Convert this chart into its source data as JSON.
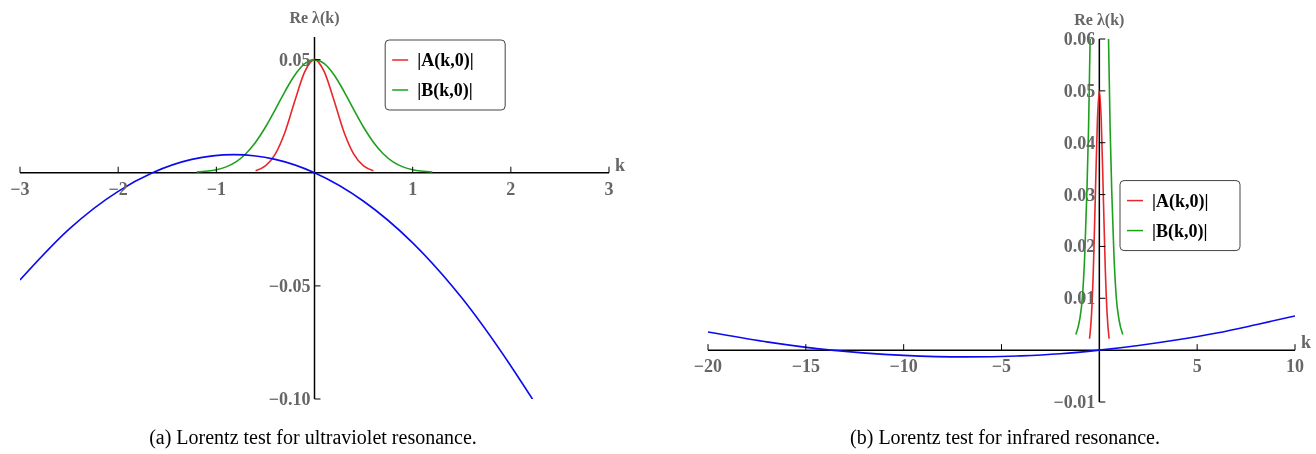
{
  "chart_data": [
    {
      "type": "line",
      "title": "(a) Lorentz test for ultraviolet resonance.",
      "xlabel": "k",
      "ylabel": "Re λ(k)",
      "xlim": [
        -3,
        3
      ],
      "ylim": [
        -0.1,
        0.06
      ],
      "xticks": [
        {
          "value": -3,
          "label": "−3"
        },
        {
          "value": -2,
          "label": "−2"
        },
        {
          "value": -1,
          "label": "−1"
        },
        1,
        2,
        3
      ],
      "yticks": [
        {
          "value": -0.1,
          "label": "−0.10"
        },
        {
          "value": -0.05,
          "label": "−0.05"
        },
        0.05
      ],
      "legend": "top right",
      "grid": false,
      "series": [
        {
          "name": "|A(k,0)|",
          "color": "#e8262b",
          "x": [
            -0.6,
            -0.5,
            -0.4,
            -0.3,
            -0.2,
            -0.1,
            0,
            0.1,
            0.2,
            0.3,
            0.4,
            0.5,
            0.6
          ],
          "values": [
            0.0009,
            0.003,
            0.0082,
            0.018,
            0.0318,
            0.0446,
            0.05,
            0.0446,
            0.0318,
            0.018,
            0.0082,
            0.003,
            0.0009
          ]
        },
        {
          "name": "|B(k,0)|",
          "color": "#1ea01e",
          "x": [
            -1.2,
            -1,
            -0.9,
            -0.8,
            -0.7,
            -0.6,
            -0.5,
            -0.4,
            -0.3,
            -0.2,
            -0.1,
            0,
            0.1,
            0.2,
            0.3,
            0.4,
            0.5,
            0.6,
            0.7,
            0.8,
            0.9,
            1,
            1.2
          ],
          "values": [
            0.0003,
            0.0013,
            0.0026,
            0.0048,
            0.0084,
            0.0135,
            0.0201,
            0.0279,
            0.036,
            0.0432,
            0.0482,
            0.05,
            0.0482,
            0.0432,
            0.036,
            0.0279,
            0.0201,
            0.0135,
            0.0084,
            0.0048,
            0.0026,
            0.0013,
            0.0003
          ]
        },
        {
          "color": "#0a0aee",
          "x": [
            -3,
            -2.5,
            -2,
            -1.65,
            -1.25,
            -0.825,
            -0.4,
            0,
            0.5,
            1,
            1.5,
            2,
            2.22
          ],
          "values": [
            -0.0474,
            -0.0249,
            -0.0082,
            0,
            0.0059,
            0.008,
            0.0059,
            0,
            -0.0126,
            -0.031,
            -0.0553,
            -0.0854,
            -0.1
          ]
        }
      ]
    },
    {
      "type": "line",
      "title": "(b) Lorentz test for infrared resonance.",
      "xlabel": "k",
      "ylabel": "Re λ(k)",
      "xlim": [
        -20,
        10
      ],
      "ylim": [
        -0.01,
        0.06
      ],
      "xticks": [
        {
          "value": -20,
          "label": "−20"
        },
        {
          "value": -15,
          "label": "−15"
        },
        {
          "value": -10,
          "label": "−10"
        },
        {
          "value": -5,
          "label": "−5"
        },
        5,
        10
      ],
      "yticks": [
        {
          "value": -0.01,
          "label": "−0.01"
        },
        0.01,
        0.02,
        0.03,
        0.04,
        0.05,
        0.06
      ],
      "legend": "right",
      "grid": false,
      "series": [
        {
          "name": "|A(k,0)|",
          "color": "#e8262b",
          "x": [
            -0.5,
            -0.4,
            -0.3,
            -0.2,
            -0.1,
            0,
            0.1,
            0.2,
            0.3,
            0.4,
            0.5
          ],
          "values": [
            0.0022,
            0.0068,
            0.0162,
            0.0303,
            0.0441,
            0.05,
            0.0441,
            0.0303,
            0.0162,
            0.0068,
            0.0022
          ]
        },
        {
          "name": "|B(k,0)|",
          "color": "#1ea01e",
          "x": [
            -1.2,
            -1,
            -0.87,
            -0.75,
            -0.64,
            -0.55,
            -0.47,
            0,
            0.47,
            0.55,
            0.64,
            0.75,
            0.87,
            1,
            1.2
          ],
          "values": [
            0.003,
            0.006,
            0.01,
            0.018,
            0.03,
            0.043,
            0.06,
            null,
            0.06,
            0.043,
            0.03,
            0.018,
            0.01,
            0.006,
            0.003
          ]
        },
        {
          "color": "#0a0aee",
          "x": [
            -20,
            -17,
            -13.7,
            -10,
            -6.85,
            -4,
            -2,
            0,
            2,
            4,
            6,
            8,
            10
          ],
          "values": [
            0.0035,
            0.0016,
            0,
            -0.001,
            -0.0013,
            -0.0011,
            -0.0007,
            0,
            0.0009,
            0.002,
            0.0033,
            0.0049,
            0.0066
          ]
        }
      ]
    }
  ]
}
